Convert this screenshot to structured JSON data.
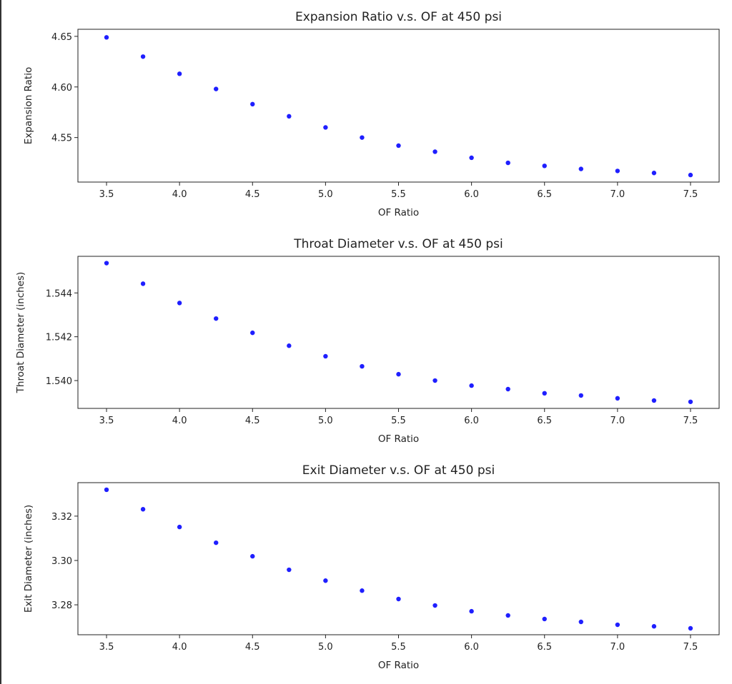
{
  "chart_data": [
    {
      "type": "scatter",
      "title": "Expansion Ratio v.s. OF at 450 psi",
      "xlabel": "OF Ratio",
      "ylabel": "Expansion Ratio",
      "x": [
        3.5,
        3.75,
        4.0,
        4.25,
        4.5,
        4.75,
        5.0,
        5.25,
        5.5,
        5.75,
        6.0,
        6.25,
        6.5,
        6.75,
        7.0,
        7.25,
        7.5
      ],
      "y": [
        4.649,
        4.63,
        4.613,
        4.598,
        4.583,
        4.571,
        4.56,
        4.55,
        4.542,
        4.536,
        4.53,
        4.525,
        4.522,
        4.519,
        4.517,
        4.515,
        4.513
      ],
      "xlim": [
        3.304,
        7.696
      ],
      "ylim": [
        4.506,
        4.657
      ],
      "xticks": [
        "3.5",
        "4.0",
        "4.5",
        "5.0",
        "5.5",
        "6.0",
        "6.5",
        "7.0",
        "7.5"
      ],
      "yticks": [
        "4.55",
        "4.60",
        "4.65"
      ],
      "color": "#1f1fff",
      "grid": false
    },
    {
      "type": "scatter",
      "title": "Throat Diameter v.s. OF at 450 psi",
      "xlabel": "OF Ratio",
      "ylabel": "Throat Diameter (inches)",
      "x": [
        3.5,
        3.75,
        4.0,
        4.25,
        4.5,
        4.75,
        5.0,
        5.25,
        5.5,
        5.75,
        6.0,
        6.25,
        6.5,
        6.75,
        7.0,
        7.25,
        7.5
      ],
      "y": [
        1.54536,
        1.54442,
        1.54354,
        1.54283,
        1.54218,
        1.54159,
        1.54111,
        1.54065,
        1.54029,
        1.54,
        1.53977,
        1.53961,
        1.53942,
        1.53932,
        1.53919,
        1.53909,
        1.53903
      ],
      "xlim": [
        3.304,
        7.696
      ],
      "ylim": [
        1.53873,
        1.54567
      ],
      "xticks": [
        "3.5",
        "4.0",
        "4.5",
        "5.0",
        "5.5",
        "6.0",
        "6.5",
        "7.0",
        "7.5"
      ],
      "yticks": [
        "1.540",
        "1.542",
        "1.544"
      ],
      "color": "#1f1fff",
      "grid": false
    },
    {
      "type": "scatter",
      "title": "Exit Diameter v.s. OF at 450 psi",
      "xlabel": "OF Ratio",
      "ylabel": "Exit Diameter (inches)",
      "x": [
        3.5,
        3.75,
        4.0,
        4.25,
        4.5,
        4.75,
        5.0,
        5.25,
        5.5,
        5.75,
        6.0,
        6.25,
        6.5,
        6.75,
        7.0,
        7.25,
        7.5
      ],
      "y": [
        3.3319,
        3.3231,
        3.3151,
        3.308,
        3.3019,
        3.2958,
        3.2909,
        3.2864,
        3.2826,
        3.2797,
        3.2771,
        3.2752,
        3.2736,
        3.2723,
        3.271,
        3.2703,
        3.2694
      ],
      "xlim": [
        3.304,
        7.696
      ],
      "ylim": [
        3.2665,
        3.3351
      ],
      "xticks": [
        "3.5",
        "4.0",
        "4.5",
        "5.0",
        "5.5",
        "6.0",
        "6.5",
        "7.0",
        "7.5"
      ],
      "yticks": [
        "3.28",
        "3.30",
        "3.32"
      ],
      "color": "#1f1fff",
      "grid": false
    }
  ]
}
